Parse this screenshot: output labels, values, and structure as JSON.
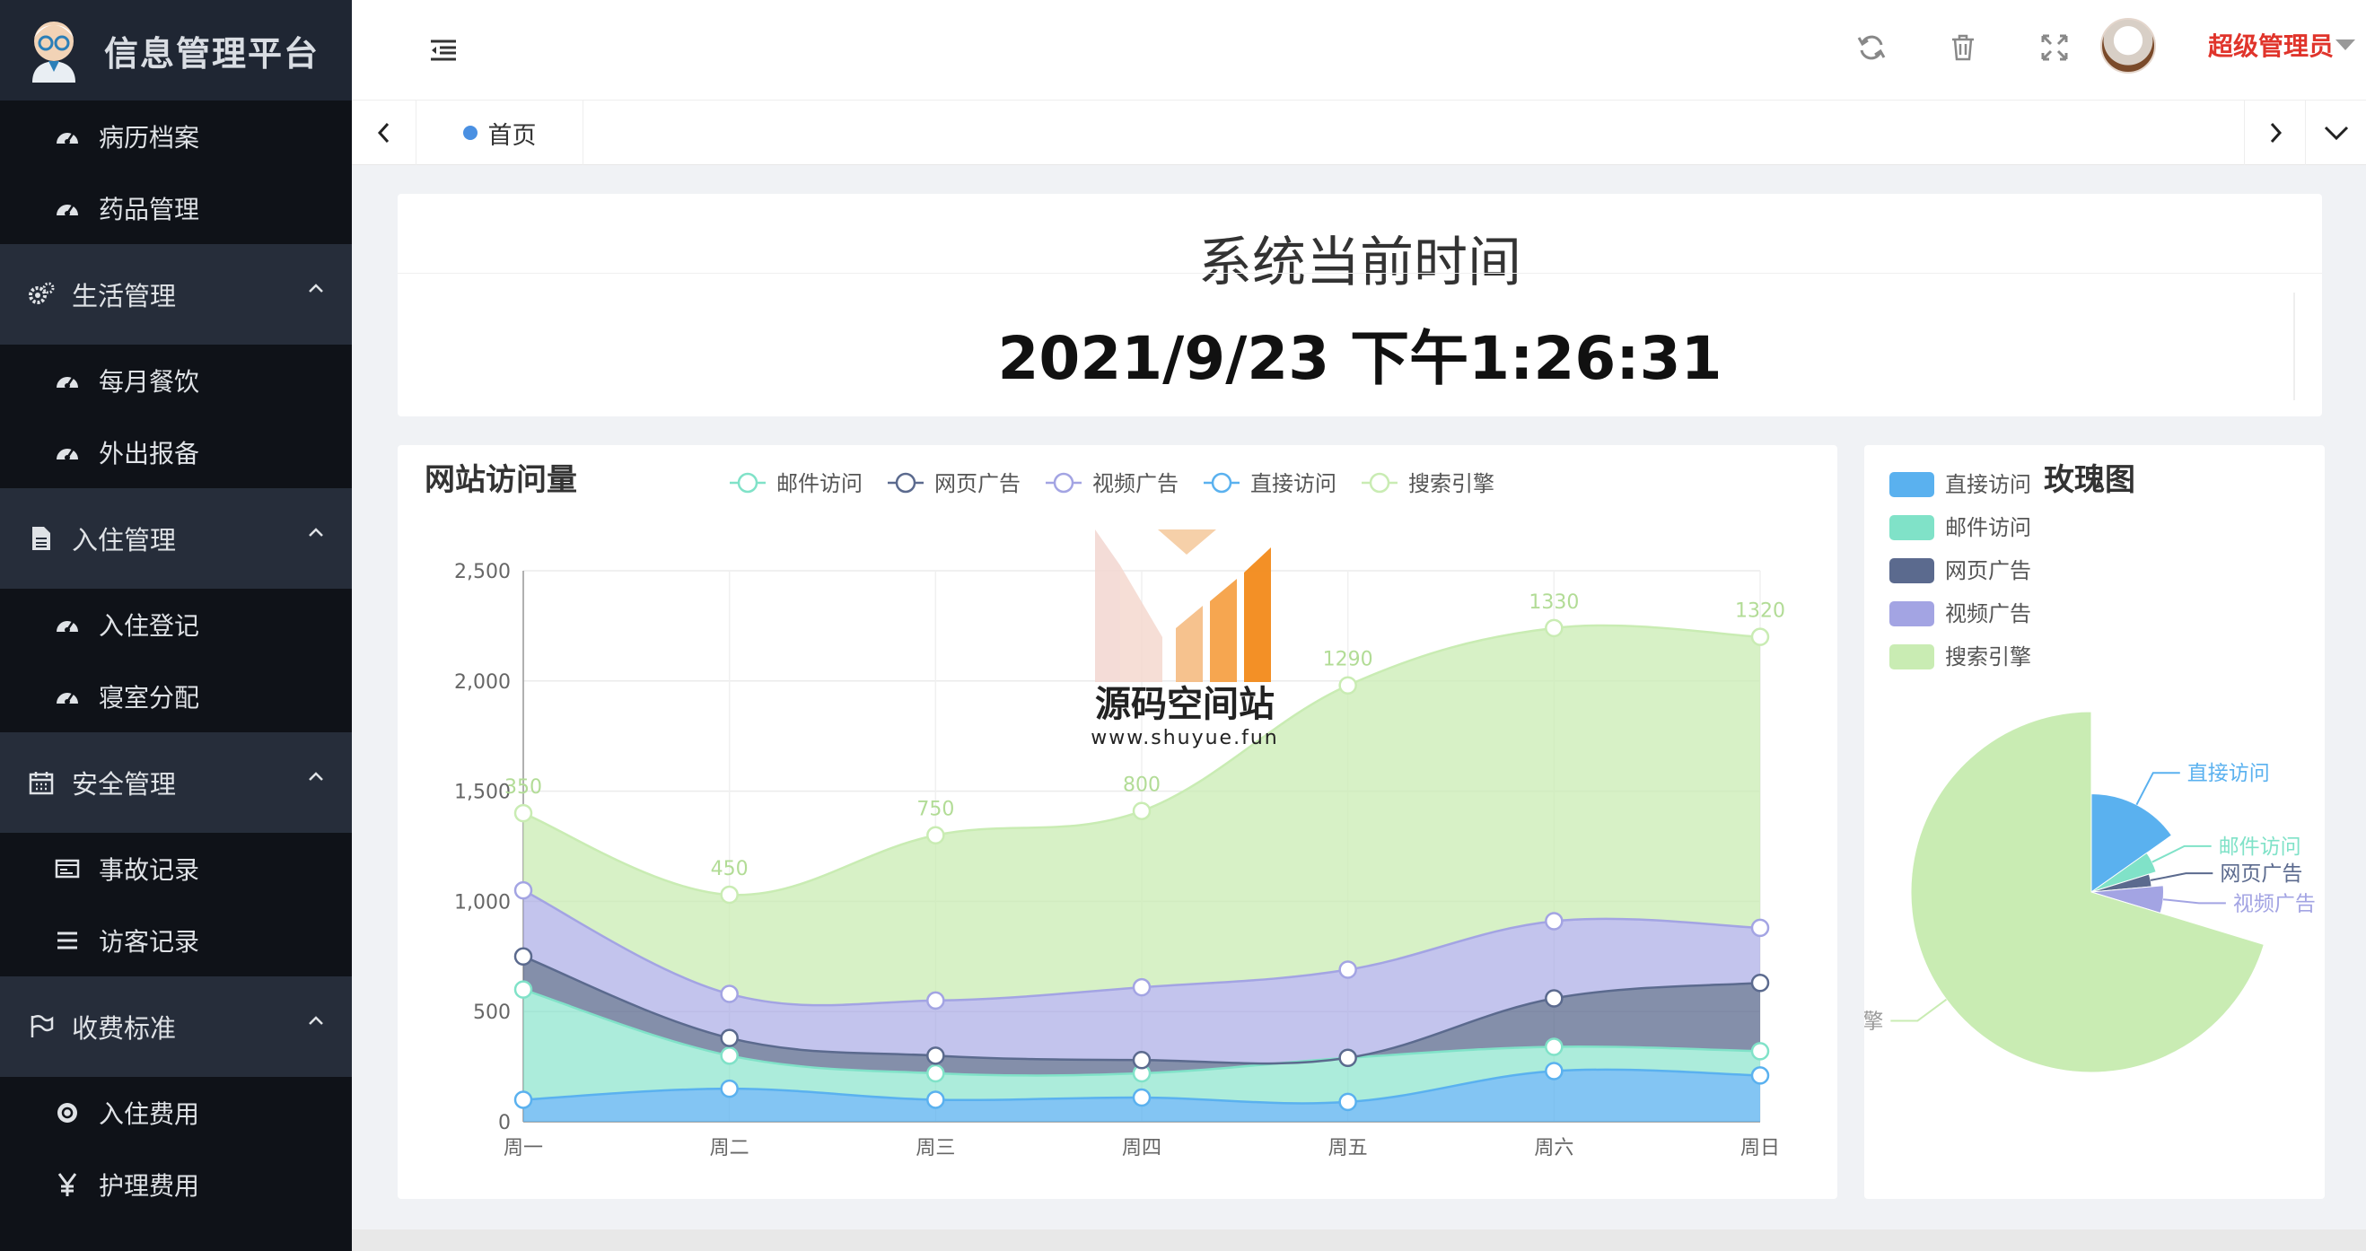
{
  "app": {
    "title": "信息管理平台"
  },
  "sidebar": {
    "items": [
      {
        "label": "病历档案",
        "icon": "dashboard-icon"
      },
      {
        "label": "药品管理",
        "icon": "dashboard-icon"
      }
    ],
    "groups": [
      {
        "label": "生活管理",
        "icon": "gears-icon",
        "children": [
          {
            "label": "每月餐饮",
            "icon": "dashboard-icon"
          },
          {
            "label": "外出报备",
            "icon": "dashboard-icon"
          }
        ]
      },
      {
        "label": "入住管理",
        "icon": "file-icon",
        "children": [
          {
            "label": "入住登记",
            "icon": "dashboard-icon"
          },
          {
            "label": "寝室分配",
            "icon": "dashboard-icon"
          }
        ]
      },
      {
        "label": "安全管理",
        "icon": "calendar-icon",
        "children": [
          {
            "label": "事故记录",
            "icon": "id-card-icon"
          },
          {
            "label": "访客记录",
            "icon": "list-icon"
          }
        ]
      },
      {
        "label": "收费标准",
        "icon": "flag-icon",
        "children": [
          {
            "label": "入住费用",
            "icon": "coin-icon"
          },
          {
            "label": "护理费用",
            "icon": "yen-icon"
          }
        ]
      }
    ]
  },
  "header": {
    "user_name": "超级管理员",
    "icons": [
      "refresh-icon",
      "trash-icon",
      "fullscreen-icon"
    ]
  },
  "tabs": {
    "home_label": "首页"
  },
  "time_card": {
    "title": "系统当前时间",
    "value": "2021/9/23 下午1:26:31"
  },
  "watermark": {
    "name": "源码空间站",
    "url": "www.shuyue.fun"
  },
  "colors": {
    "direct": "#5ab1ef",
    "mail": "#80e2c8",
    "web_ad": "#5b6a8e",
    "video_ad": "#a3a4e3",
    "search": "#c9ecb3",
    "user_name": "#e0342b"
  },
  "chart_data": [
    {
      "type": "area",
      "title": "网站访问量",
      "stacked": true,
      "smooth": true,
      "categories": [
        "周一",
        "周二",
        "周三",
        "周四",
        "周五",
        "周六",
        "周日"
      ],
      "ylim": [
        0,
        2500
      ],
      "yticks": [
        "0",
        "500",
        "1,000",
        "1,500",
        "2,000",
        "2,500"
      ],
      "legend": [
        "邮件访问",
        "网页广告",
        "视频广告",
        "直接访问",
        "搜索引擎"
      ],
      "legend_position": "top",
      "series": [
        {
          "name": "直接访问",
          "values": [
            100,
            150,
            100,
            110,
            90,
            230,
            210
          ]
        },
        {
          "name": "邮件访问",
          "values": [
            500,
            150,
            120,
            110,
            200,
            110,
            110
          ]
        },
        {
          "name": "网页广告",
          "values": [
            150,
            80,
            80,
            60,
            0,
            220,
            310
          ]
        },
        {
          "name": "视频广告",
          "values": [
            300,
            200,
            250,
            330,
            400,
            350,
            250
          ]
        },
        {
          "name": "搜索引擎",
          "values": [
            350,
            450,
            750,
            800,
            1290,
            1330,
            1320
          ]
        }
      ],
      "top_labels": [
        "350",
        "450",
        "750",
        "800",
        "1290",
        "1330",
        "1320"
      ]
    },
    {
      "type": "pie",
      "title": "玫瑰图",
      "rose": true,
      "legend": [
        "直接访问",
        "邮件访问",
        "网页广告",
        "视频广告",
        "搜索引擎"
      ],
      "legend_position": "top-left",
      "slices": [
        {
          "name": "直接访问",
          "value": 335
        },
        {
          "name": "邮件访问",
          "value": 110
        },
        {
          "name": "网页广告",
          "value": 74
        },
        {
          "name": "视频广告",
          "value": 135
        },
        {
          "name": "搜索引擎",
          "value": 1548
        }
      ],
      "slice_labels": [
        "直接访问",
        "邮件访问",
        "网页广告",
        "视频广告",
        "搜索引擎"
      ]
    }
  ]
}
